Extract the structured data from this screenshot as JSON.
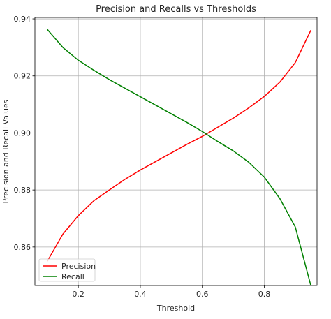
{
  "chart_data": {
    "type": "line",
    "title": "Precision and Recalls vs Thresholds",
    "xlabel": "Threshold",
    "ylabel": "Precision and Recall Values",
    "xlim": [
      0.06,
      0.97
    ],
    "ylim": [
      0.8465,
      0.9405
    ],
    "xticks": [
      0.2,
      0.4,
      0.6,
      0.8
    ],
    "xtick_labels": [
      "0.2",
      "0.4",
      "0.6",
      "0.8"
    ],
    "yticks": [
      0.86,
      0.88,
      0.9,
      0.92,
      0.94
    ],
    "ytick_labels": [
      "0.86",
      "0.88",
      "0.90",
      "0.92",
      "0.94"
    ],
    "grid": true,
    "legend_position": "lower-left",
    "x": [
      0.1,
      0.15,
      0.2,
      0.25,
      0.3,
      0.35,
      0.4,
      0.45,
      0.5,
      0.55,
      0.6,
      0.65,
      0.7,
      0.75,
      0.8,
      0.85,
      0.9,
      0.95
    ],
    "series": [
      {
        "name": "Precision",
        "color": "#ff0000",
        "values": [
          0.855,
          0.8645,
          0.871,
          0.8762,
          0.88,
          0.8837,
          0.887,
          0.89,
          0.893,
          0.896,
          0.8988,
          0.902,
          0.9052,
          0.9088,
          0.9128,
          0.9178,
          0.9247,
          0.936
        ]
      },
      {
        "name": "Recall",
        "color": "#008000",
        "values": [
          0.9363,
          0.93,
          0.9255,
          0.922,
          0.9187,
          0.9157,
          0.9127,
          0.9097,
          0.9067,
          0.9037,
          0.9005,
          0.897,
          0.8937,
          0.8897,
          0.8845,
          0.877,
          0.867,
          0.8465
        ]
      }
    ]
  }
}
